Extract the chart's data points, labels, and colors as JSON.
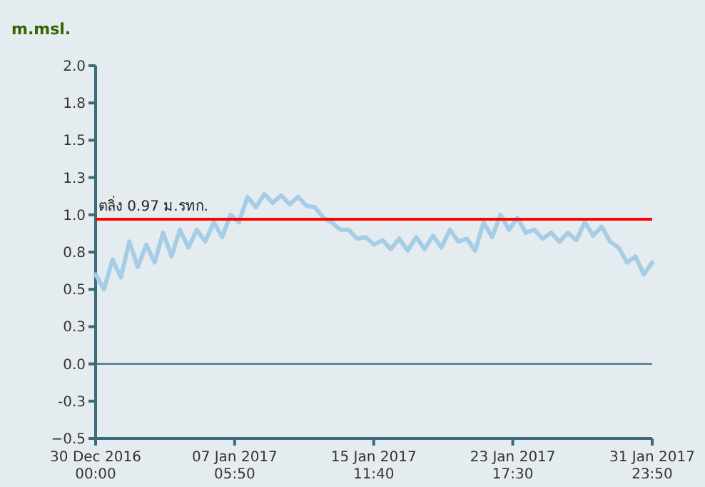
{
  "chart_data": {
    "type": "line",
    "ylabel": "m.msl.",
    "x": [
      "2016-12-30T00:00",
      "2016-12-30T12:00",
      "2016-12-31T00:00",
      "2016-12-31T12:00",
      "2017-01-01T00:00",
      "2017-01-01T12:00",
      "2017-01-02T00:00",
      "2017-01-02T12:00",
      "2017-01-03T00:00",
      "2017-01-03T12:00",
      "2017-01-04T00:00",
      "2017-01-04T12:00",
      "2017-01-05T00:00",
      "2017-01-05T12:00",
      "2017-01-06T00:00",
      "2017-01-06T12:00",
      "2017-01-07T00:00",
      "2017-01-07T12:00",
      "2017-01-08T00:00",
      "2017-01-08T12:00",
      "2017-01-09T00:00",
      "2017-01-09T12:00",
      "2017-01-10T00:00",
      "2017-01-10T12:00",
      "2017-01-11T00:00",
      "2017-01-11T12:00",
      "2017-01-12T00:00",
      "2017-01-12T12:00",
      "2017-01-13T00:00",
      "2017-01-13T12:00",
      "2017-01-14T00:00",
      "2017-01-14T12:00",
      "2017-01-15T00:00",
      "2017-01-15T12:00",
      "2017-01-16T00:00",
      "2017-01-16T12:00",
      "2017-01-17T00:00",
      "2017-01-17T12:00",
      "2017-01-18T00:00",
      "2017-01-18T12:00",
      "2017-01-19T00:00",
      "2017-01-19T12:00",
      "2017-01-20T00:00",
      "2017-01-20T12:00",
      "2017-01-21T00:00",
      "2017-01-21T12:00",
      "2017-01-22T00:00",
      "2017-01-22T12:00",
      "2017-01-23T00:00",
      "2017-01-23T12:00",
      "2017-01-24T00:00",
      "2017-01-24T12:00",
      "2017-01-25T00:00",
      "2017-01-25T12:00",
      "2017-01-26T00:00",
      "2017-01-26T12:00",
      "2017-01-27T00:00",
      "2017-01-27T12:00",
      "2017-01-28T00:00",
      "2017-01-28T12:00",
      "2017-01-29T00:00",
      "2017-01-29T12:00",
      "2017-01-30T00:00",
      "2017-01-30T12:00",
      "2017-01-31T00:00",
      "2017-01-31T12:00",
      "2017-01-31T23:50"
    ],
    "series": [
      {
        "color": "#a6cde6",
        "values": [
          0.6,
          0.5,
          0.7,
          0.58,
          0.82,
          0.65,
          0.8,
          0.68,
          0.88,
          0.72,
          0.9,
          0.78,
          0.9,
          0.82,
          0.95,
          0.85,
          1.0,
          0.95,
          1.12,
          1.05,
          1.14,
          1.08,
          1.13,
          1.07,
          1.12,
          1.06,
          1.05,
          0.98,
          0.95,
          0.9,
          0.9,
          0.84,
          0.85,
          0.8,
          0.83,
          0.77,
          0.84,
          0.76,
          0.85,
          0.77,
          0.86,
          0.78,
          0.9,
          0.82,
          0.84,
          0.76,
          0.95,
          0.85,
          1.0,
          0.9,
          0.98,
          0.88,
          0.9,
          0.84,
          0.88,
          0.82,
          0.88,
          0.83,
          0.95,
          0.86,
          0.92,
          0.82,
          0.78,
          0.68,
          0.72,
          0.6,
          0.68
        ]
      }
    ],
    "xlim": [
      "2016-12-30T00:00",
      "2017-01-31T23:50"
    ],
    "xticks": [
      {
        "value": "2016-12-30T00:00",
        "label": "30 Dec 2016\n00:00"
      },
      {
        "value": "2017-01-07T05:50",
        "label": "07 Jan 2017\n05:50"
      },
      {
        "value": "2017-01-15T11:40",
        "label": "15 Jan 2017\n11:40"
      },
      {
        "value": "2017-01-23T17:30",
        "label": "23 Jan 2017\n17:30"
      },
      {
        "value": "2017-01-31T23:50",
        "label": "31 Jan 2017\n23:50"
      }
    ],
    "ylim": [
      -0.5,
      2.0
    ],
    "yticks": [
      -0.5,
      {
        "value": -0.25,
        "label": "-0.3"
      },
      {
        "value": 0,
        "label": "0.0"
      },
      {
        "value": 0.25,
        "label": "0.3"
      },
      0.5,
      {
        "value": 0.75,
        "label": "0.8"
      },
      {
        "value": 1,
        "label": "1.0"
      },
      {
        "value": 1.25,
        "label": "1.3"
      },
      1.5,
      {
        "value": 1.75,
        "label": "1.8"
      },
      {
        "value": 2,
        "label": "2.0"
      }
    ],
    "ref_lines": [
      {
        "axis": "y",
        "value": 0.97,
        "label": "ตลิ่ง 0.97 ม.รทก.",
        "color": "#ff0000"
      },
      {
        "axis": "y",
        "value": 0,
        "color": "#3d6a7a"
      }
    ],
    "grid": false,
    "marker": "none",
    "line_style": "solid"
  }
}
